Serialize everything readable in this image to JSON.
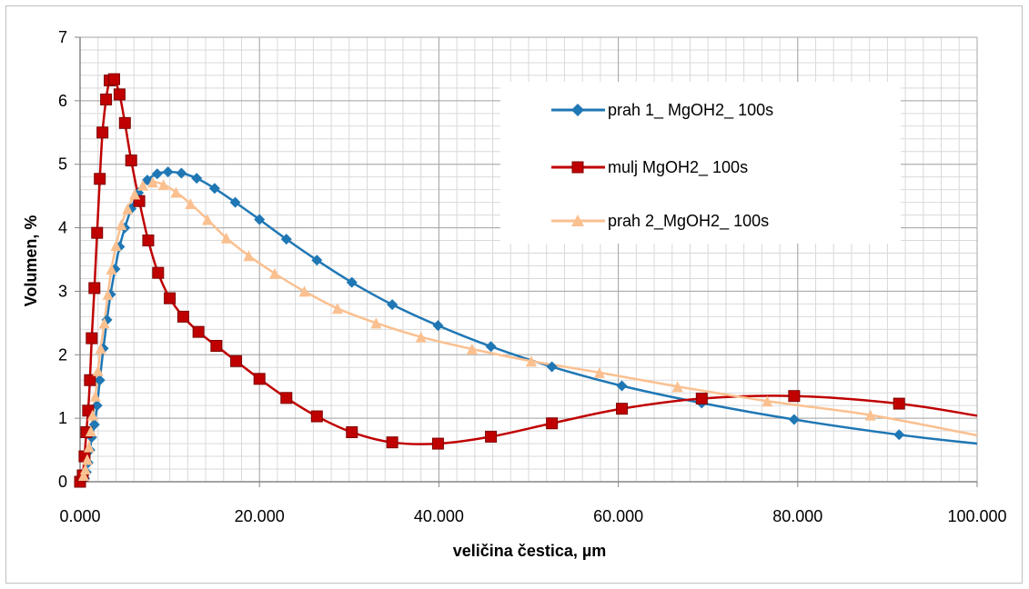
{
  "chart_data": {
    "type": "line",
    "xlabel": "veličina čestica, µm",
    "ylabel": "Volumen, %",
    "xlim": [
      0,
      100
    ],
    "ylim": [
      0,
      7
    ],
    "x_major_step": 20,
    "x_minor_step": 2,
    "y_major_step": 1,
    "y_minor_step": 0.2,
    "x_tick_labels": [
      "0.000",
      "20.000",
      "40.000",
      "60.000",
      "80.000",
      "100.000"
    ],
    "y_tick_labels": [
      "0",
      "1",
      "2",
      "3",
      "4",
      "5",
      "6",
      "7"
    ],
    "grid": true,
    "legend_position": "top-right",
    "series": [
      {
        "name": "prah 1_ MgOH2_ 100s",
        "color": "#1f77b4",
        "marker": "diamond",
        "x": [
          0.5,
          0.7,
          0.9,
          1.1,
          1.3,
          1.6,
          1.9,
          2.2,
          2.6,
          3.0,
          3.4,
          3.9,
          4.4,
          5.0,
          5.7,
          6.5,
          7.5,
          8.6,
          9.8,
          11.3,
          13.0,
          15.0,
          17.3,
          20.0,
          23.0,
          26.4,
          30.3,
          34.8,
          39.9,
          45.8,
          52.6,
          60.4,
          69.3,
          79.6,
          91.3,
          100
        ],
        "y": [
          0.05,
          0.15,
          0.3,
          0.5,
          0.7,
          0.9,
          1.2,
          1.6,
          2.1,
          2.55,
          2.95,
          3.35,
          3.7,
          4.0,
          4.3,
          4.55,
          4.75,
          4.85,
          4.88,
          4.86,
          4.78,
          4.62,
          4.4,
          4.13,
          3.82,
          3.49,
          3.14,
          2.79,
          2.46,
          2.13,
          1.81,
          1.51,
          1.24,
          0.98,
          0.74,
          0.6
        ],
        "marked_x": [
          0.5,
          0.7,
          0.9,
          1.1,
          1.3,
          1.6,
          1.9,
          2.2,
          2.6,
          3.0,
          3.4,
          3.9,
          4.4,
          5.0,
          5.7,
          6.5,
          7.5,
          8.6,
          9.8,
          11.3,
          13.0,
          15.0,
          17.3,
          20.0,
          23.0,
          26.4,
          30.3,
          34.8,
          39.9,
          45.8,
          52.6,
          60.4,
          69.3,
          79.6,
          91.3
        ]
      },
      {
        "name": "mulj MgOH2_ 100s",
        "color": "#c00000",
        "marker": "square",
        "x": [
          0.0,
          0.3,
          0.5,
          0.7,
          0.9,
          1.1,
          1.3,
          1.6,
          1.9,
          2.2,
          2.5,
          2.9,
          3.3,
          3.8,
          4.4,
          5.0,
          5.7,
          6.6,
          7.6,
          8.7,
          10.0,
          11.5,
          13.2,
          15.2,
          17.4,
          20.0,
          23.0,
          26.4,
          30.3,
          34.8,
          39.9,
          45.8,
          52.6,
          60.4,
          69.3,
          79.6,
          91.3,
          100
        ],
        "y": [
          0.0,
          0.1,
          0.4,
          0.78,
          1.12,
          1.6,
          2.26,
          3.05,
          3.92,
          4.77,
          5.5,
          6.02,
          6.32,
          6.34,
          6.1,
          5.65,
          5.06,
          4.42,
          3.8,
          3.29,
          2.89,
          2.6,
          2.36,
          2.14,
          1.9,
          1.62,
          1.32,
          1.03,
          0.78,
          0.62,
          0.6,
          0.71,
          0.92,
          1.15,
          1.31,
          1.35,
          1.23,
          1.04
        ],
        "marked_x": [
          0.0,
          0.3,
          0.5,
          0.7,
          0.9,
          1.1,
          1.3,
          1.6,
          1.9,
          2.2,
          2.5,
          2.9,
          3.3,
          3.8,
          4.4,
          5.0,
          5.7,
          6.6,
          7.6,
          8.7,
          10.0,
          11.5,
          13.2,
          15.2,
          17.4,
          20.0,
          23.0,
          26.4,
          30.3,
          34.8,
          39.9,
          45.8,
          52.6,
          60.4,
          69.3,
          79.6,
          91.3
        ]
      },
      {
        "name": "prah 2_MgOH2_ 100s",
        "color": "#fac090",
        "marker": "triangle",
        "x": [
          0.4,
          0.6,
          0.8,
          1.0,
          1.2,
          1.4,
          1.7,
          2.0,
          2.3,
          2.7,
          3.1,
          3.5,
          4.0,
          4.6,
          5.3,
          6.1,
          7.0,
          8.1,
          9.3,
          10.7,
          12.3,
          14.2,
          16.3,
          18.8,
          21.7,
          25.0,
          28.7,
          33.0,
          38.0,
          43.7,
          50.3,
          57.9,
          66.6,
          76.6,
          88.1,
          100
        ],
        "y": [
          0.1,
          0.2,
          0.35,
          0.55,
          0.8,
          1.05,
          1.35,
          1.75,
          2.1,
          2.5,
          2.95,
          3.35,
          3.72,
          4.05,
          4.3,
          4.53,
          4.67,
          4.72,
          4.68,
          4.56,
          4.38,
          4.13,
          3.84,
          3.56,
          3.28,
          3.0,
          2.73,
          2.5,
          2.28,
          2.09,
          1.9,
          1.72,
          1.5,
          1.27,
          1.05,
          0.73
        ],
        "marked_x": [
          0.4,
          0.6,
          0.8,
          1.0,
          1.2,
          1.4,
          1.7,
          2.0,
          2.3,
          2.7,
          3.1,
          3.5,
          4.0,
          4.6,
          5.3,
          6.1,
          7.0,
          8.1,
          9.3,
          10.7,
          12.3,
          14.2,
          16.3,
          18.8,
          21.7,
          25.0,
          28.7,
          33.0,
          38.0,
          43.7,
          50.3,
          57.9,
          66.6,
          76.6,
          88.1
        ]
      }
    ]
  }
}
